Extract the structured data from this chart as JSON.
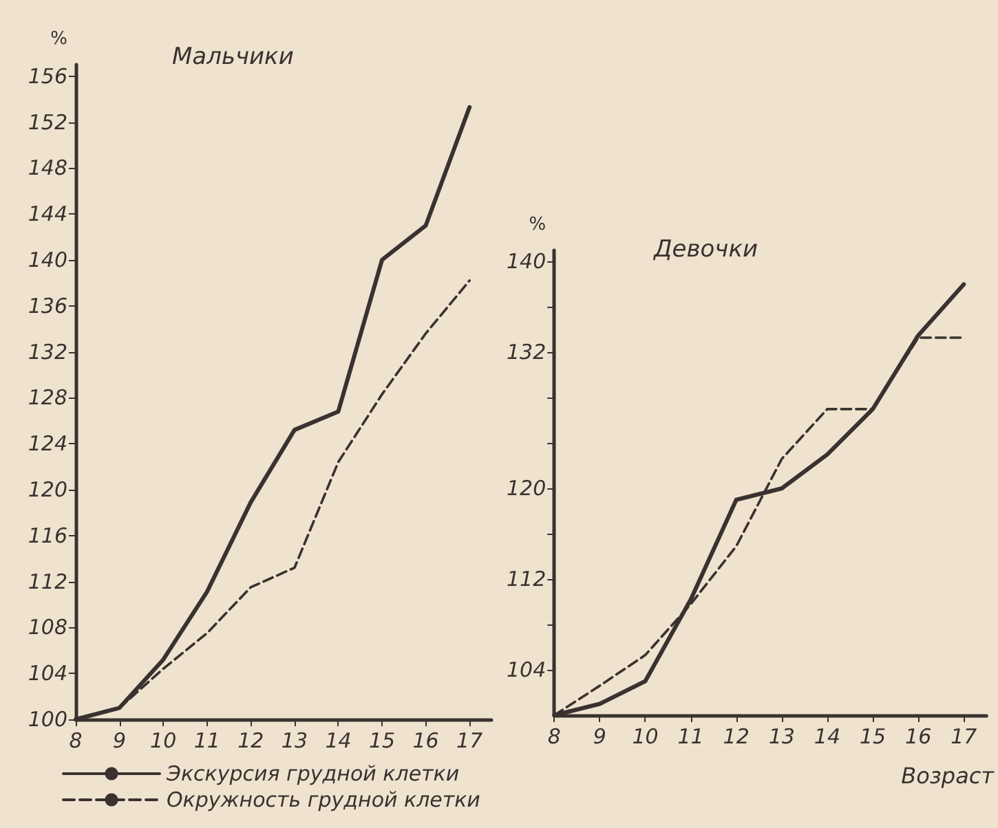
{
  "chart_data": [
    {
      "type": "line",
      "title": "Мальчики",
      "ylabel": "%",
      "x": [
        8,
        9,
        10,
        11,
        12,
        13,
        14,
        15,
        16,
        17
      ],
      "xlim": [
        8,
        17.5
      ],
      "xticks": [
        8,
        9,
        10,
        11,
        12,
        13,
        14,
        15,
        16,
        17
      ],
      "ylim": [
        100,
        157
      ],
      "yticks": [
        100,
        104,
        108,
        112,
        116,
        120,
        124,
        128,
        132,
        136,
        140,
        144,
        148,
        152,
        156
      ],
      "grid": false,
      "legend": "bottom",
      "marker": "none",
      "series": [
        {
          "name": "Экскурсия грудной клетки",
          "color": "#3a3230",
          "line_style": "solid",
          "values": [
            100,
            101,
            105.2,
            111.1,
            118.9,
            125.2,
            126.8,
            140,
            143,
            153.3
          ]
        },
        {
          "name": "Окружность грудной клетки",
          "color": "#3a3230",
          "line_style": "dashed",
          "values": [
            100,
            101,
            104.4,
            107.5,
            111.5,
            113.2,
            122.4,
            128.3,
            133.6,
            138.2
          ]
        }
      ]
    },
    {
      "type": "line",
      "title": "Девочки",
      "ylabel": "%",
      "xlabel": "Возраст",
      "x": [
        8,
        9,
        10,
        11,
        12,
        13,
        14,
        15,
        16,
        17
      ],
      "xlim": [
        8,
        17.5
      ],
      "xticks": [
        8,
        9,
        10,
        11,
        12,
        13,
        14,
        15,
        16,
        17
      ],
      "ylim": [
        100,
        141
      ],
      "yticks": [
        104,
        {
          "value": 108,
          "label": null
        },
        112,
        {
          "value": 116,
          "label": null
        },
        120,
        {
          "value": 124,
          "label": null
        },
        {
          "value": 128,
          "label": null
        },
        132,
        {
          "value": 136,
          "label": null
        },
        140
      ],
      "grid": false,
      "marker": "none",
      "series": [
        {
          "color": "#3a3230",
          "line_style": "solid",
          "values": [
            100,
            101,
            103,
            110.2,
            119,
            120,
            123,
            127,
            133.5,
            138
          ]
        },
        {
          "color": "#3a3230",
          "line_style": "dashed",
          "values": [
            100,
            102.6,
            105.3,
            109.8,
            114.9,
            122.6,
            127,
            127,
            133.3,
            133.3
          ]
        }
      ]
    }
  ]
}
